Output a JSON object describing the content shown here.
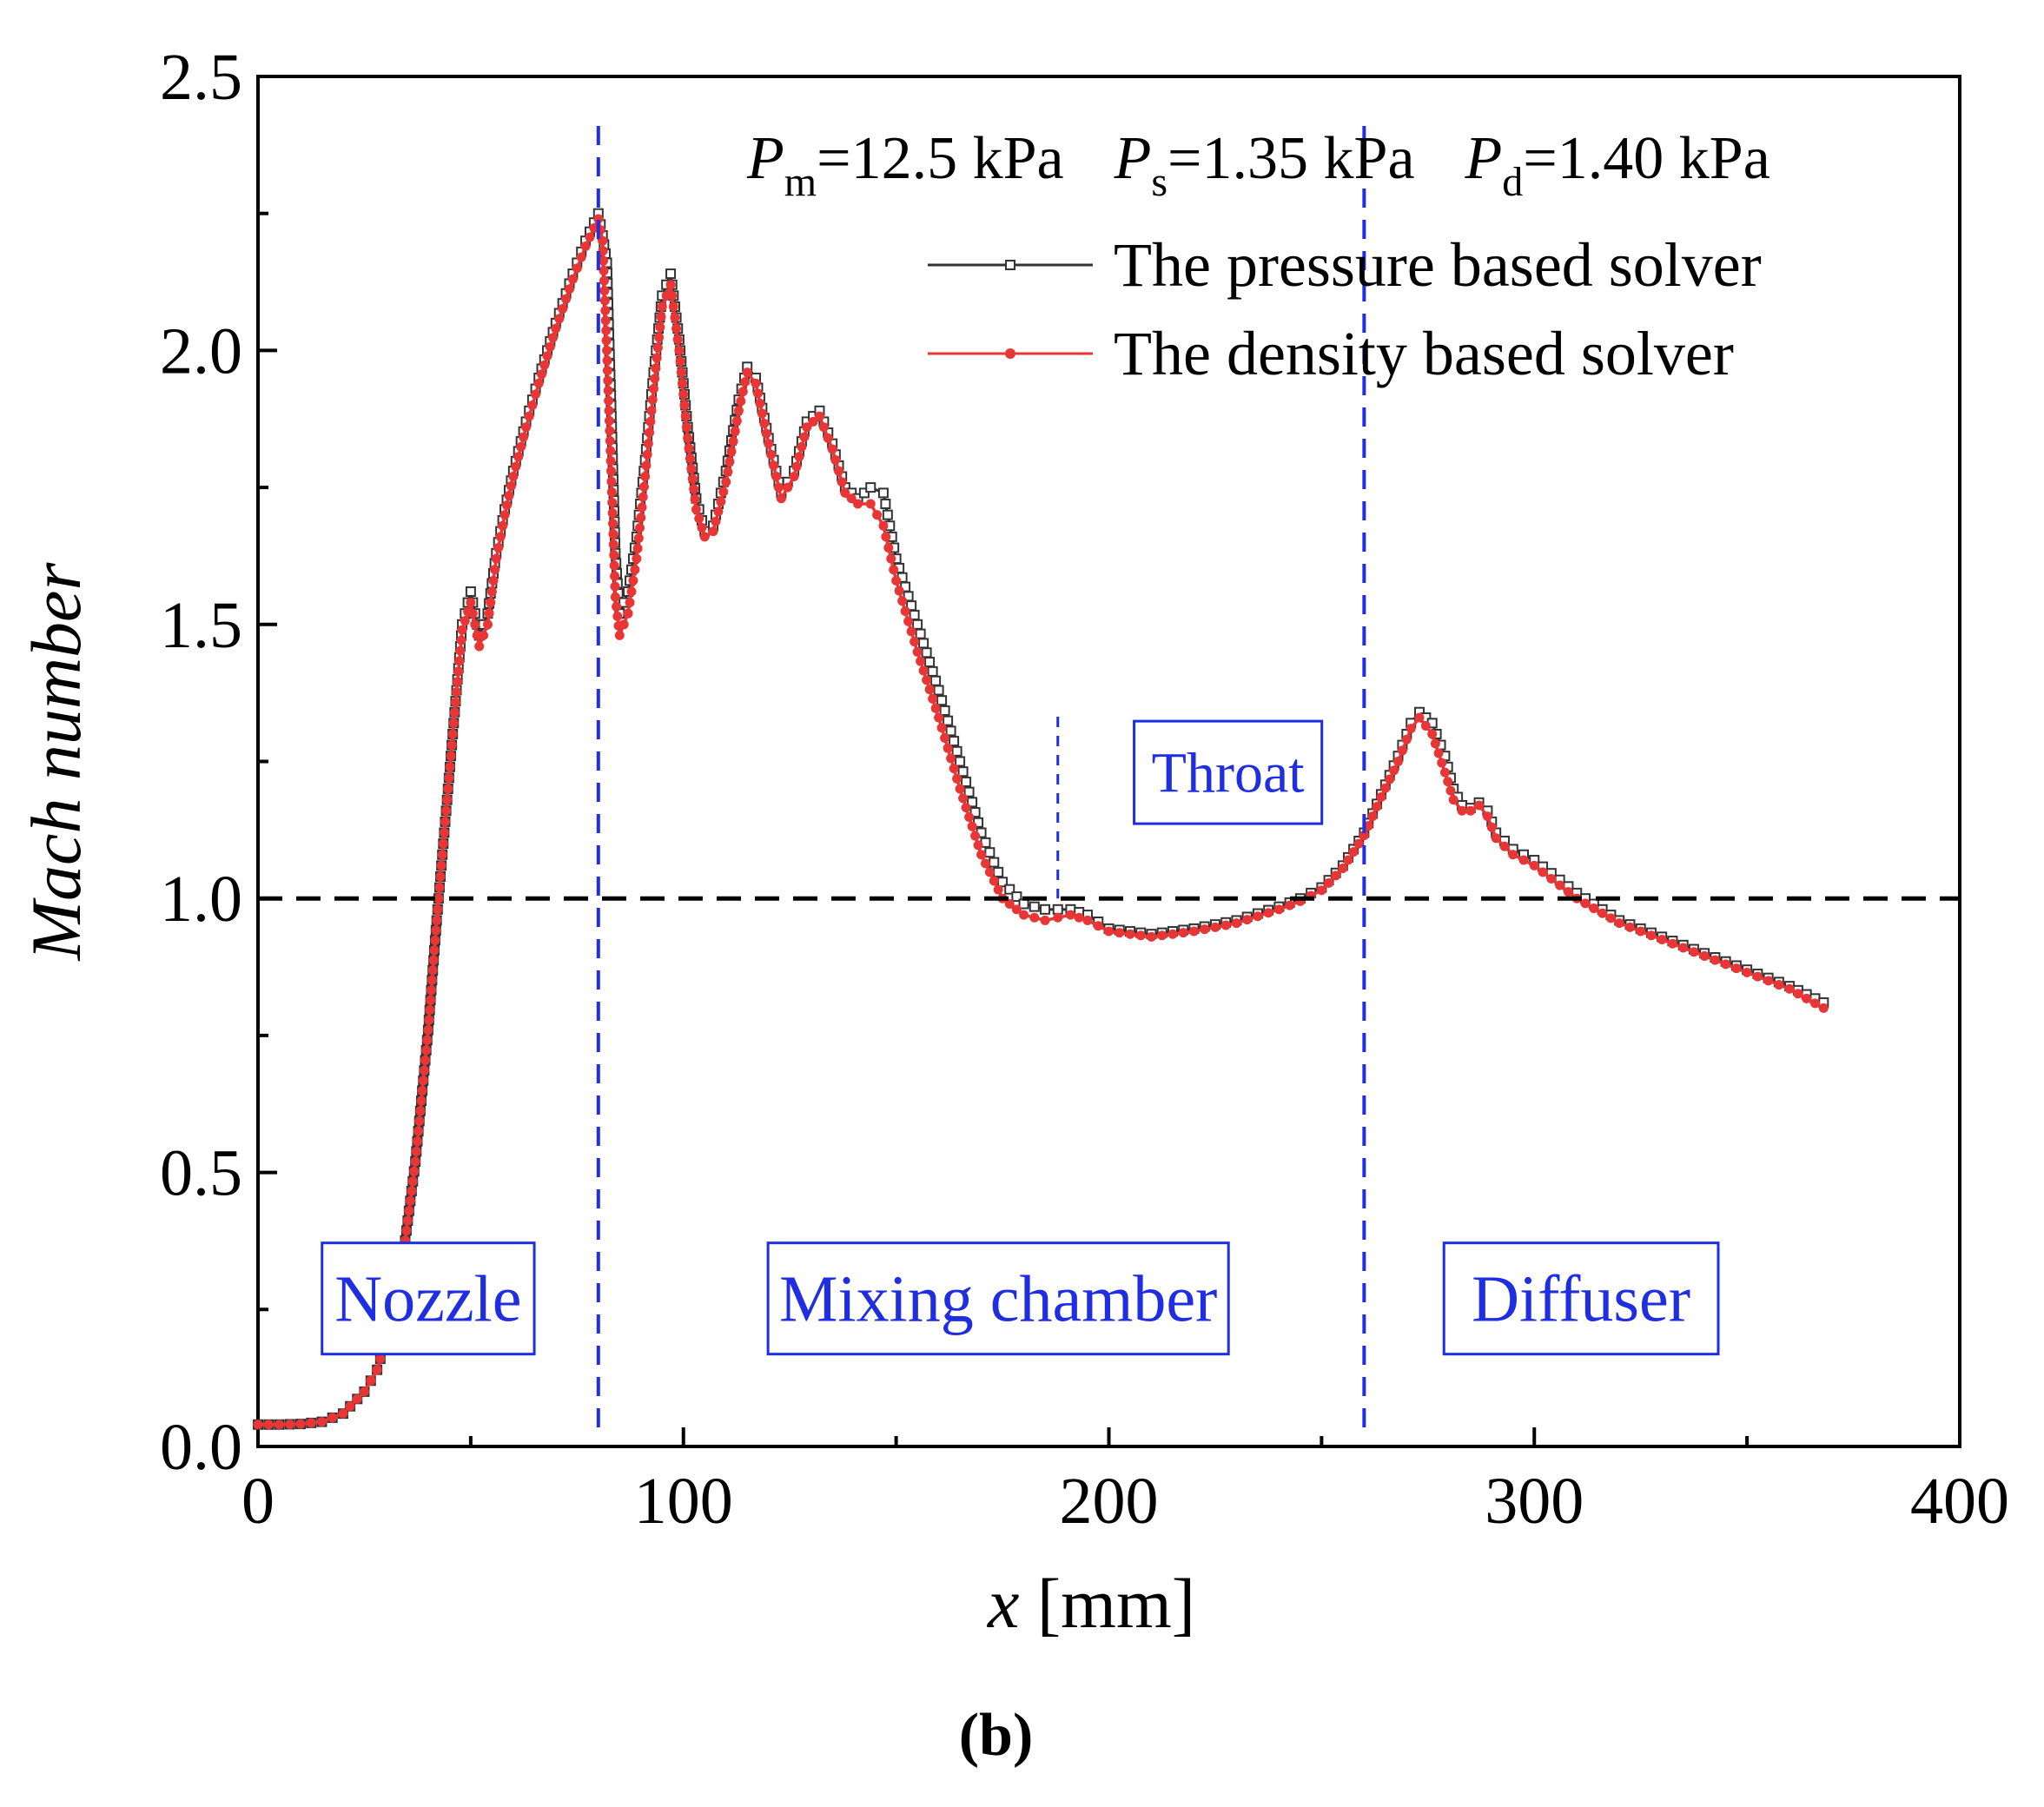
{
  "chart_data": {
    "type": "line",
    "xlabel_var": "x",
    "xlabel_unit": " [mm]",
    "ylabel": "Mach number",
    "xlim": [
      0,
      400
    ],
    "ylim": [
      0,
      2.5
    ],
    "xticks": [
      "0",
      "100",
      "200",
      "300",
      "400"
    ],
    "yticks": [
      "0.0",
      "0.5",
      "1.0",
      "1.5",
      "2.0",
      "2.5"
    ],
    "conditions": [
      {
        "sym": "P",
        "sub": "m",
        "val": "=12.5 kPa"
      },
      {
        "sym": "P",
        "sub": "s",
        "val": "=1.35 kPa"
      },
      {
        "sym": "P",
        "sub": "d",
        "val": "=1.40 kPa"
      }
    ],
    "reference_line": {
      "y": 1.0
    },
    "region_boundaries": [
      {
        "x": 80,
        "kind": "major"
      },
      {
        "x": 188,
        "kind": "minor"
      },
      {
        "x": 260,
        "kind": "major"
      }
    ],
    "regions": [
      {
        "label": "Nozzle",
        "x_center": 40,
        "y": 0.27
      },
      {
        "label": "Mixing chamber",
        "x_center": 174,
        "y": 0.27
      },
      {
        "label": "Throat",
        "x_center": 228,
        "y": 1.23
      },
      {
        "label": "Diffuser",
        "x_center": 311,
        "y": 0.27
      }
    ],
    "panel_label": "(b)",
    "series": [
      {
        "name": "The pressure based solver",
        "color": "#333333",
        "marker": "square",
        "x": [
          0,
          5,
          10,
          15,
          20,
          25,
          28,
          31,
          34,
          37,
          40,
          42,
          44,
          46,
          48,
          50,
          52,
          54,
          56,
          58,
          60,
          63,
          66,
          70,
          74,
          77,
          80,
          81,
          82,
          83,
          84,
          85,
          87,
          89,
          91,
          93,
          95,
          97,
          99,
          101,
          103,
          105,
          107,
          110,
          113,
          115,
          117,
          120,
          123,
          126,
          129,
          132,
          135,
          138,
          141,
          144,
          147,
          150,
          155,
          160,
          165,
          170,
          175,
          180,
          185,
          188,
          191,
          195,
          200,
          205,
          210,
          215,
          220,
          230,
          240,
          245,
          250,
          255,
          260,
          264,
          268,
          271,
          273,
          276,
          279,
          281,
          283,
          285,
          287,
          289,
          291,
          295,
          300,
          310,
          320,
          330,
          340,
          350,
          360,
          368
        ],
        "values": [
          0.04,
          0.04,
          0.041,
          0.045,
          0.06,
          0.1,
          0.14,
          0.22,
          0.34,
          0.52,
          0.76,
          0.96,
          1.14,
          1.32,
          1.5,
          1.56,
          1.48,
          1.52,
          1.63,
          1.71,
          1.78,
          1.87,
          1.95,
          2.05,
          2.14,
          2.2,
          2.25,
          2.21,
          2.16,
          1.9,
          1.63,
          1.52,
          1.56,
          1.66,
          1.8,
          1.96,
          2.1,
          2.14,
          2.02,
          1.86,
          1.73,
          1.67,
          1.68,
          1.78,
          1.91,
          1.97,
          1.95,
          1.84,
          1.74,
          1.78,
          1.87,
          1.89,
          1.83,
          1.75,
          1.73,
          1.75,
          1.74,
          1.62,
          1.5,
          1.38,
          1.25,
          1.12,
          1.03,
          0.99,
          0.98,
          0.98,
          0.98,
          0.97,
          0.945,
          0.94,
          0.935,
          0.94,
          0.945,
          0.96,
          0.985,
          1.0,
          1.02,
          1.06,
          1.12,
          1.19,
          1.26,
          1.32,
          1.34,
          1.32,
          1.26,
          1.2,
          1.17,
          1.165,
          1.175,
          1.16,
          1.12,
          1.09,
          1.07,
          1.01,
          0.96,
          0.93,
          0.9,
          0.87,
          0.84,
          0.81
        ]
      },
      {
        "name": "The density based solver",
        "color": "#e83535",
        "marker": "dot",
        "x": [
          0,
          5,
          10,
          15,
          20,
          25,
          28,
          31,
          34,
          37,
          40,
          42,
          44,
          46,
          48,
          50,
          52,
          54,
          56,
          58,
          60,
          63,
          66,
          70,
          74,
          77,
          80,
          81,
          82,
          83,
          84,
          85,
          87,
          89,
          91,
          93,
          95,
          97,
          99,
          101,
          103,
          105,
          107,
          110,
          113,
          115,
          117,
          120,
          123,
          126,
          129,
          132,
          135,
          138,
          141,
          144,
          147,
          150,
          155,
          160,
          165,
          170,
          175,
          180,
          185,
          188,
          191,
          195,
          200,
          205,
          210,
          215,
          220,
          230,
          240,
          245,
          250,
          255,
          260,
          264,
          268,
          271,
          273,
          276,
          279,
          281,
          283,
          285,
          287,
          289,
          291,
          295,
          300,
          310,
          320,
          330,
          340,
          350,
          360,
          368
        ],
        "values": [
          0.04,
          0.04,
          0.041,
          0.045,
          0.06,
          0.1,
          0.14,
          0.22,
          0.34,
          0.52,
          0.76,
          0.96,
          1.14,
          1.32,
          1.49,
          1.54,
          1.46,
          1.5,
          1.62,
          1.7,
          1.77,
          1.86,
          1.94,
          2.04,
          2.13,
          2.19,
          2.24,
          2.2,
          2.0,
          1.78,
          1.55,
          1.48,
          1.52,
          1.62,
          1.77,
          1.93,
          2.08,
          2.12,
          2.0,
          1.84,
          1.71,
          1.66,
          1.67,
          1.76,
          1.89,
          1.96,
          1.94,
          1.83,
          1.73,
          1.77,
          1.86,
          1.88,
          1.82,
          1.74,
          1.72,
          1.72,
          1.68,
          1.58,
          1.45,
          1.33,
          1.2,
          1.08,
          1.0,
          0.97,
          0.96,
          0.965,
          0.97,
          0.96,
          0.94,
          0.935,
          0.93,
          0.935,
          0.94,
          0.955,
          0.98,
          0.995,
          1.015,
          1.055,
          1.115,
          1.185,
          1.25,
          1.31,
          1.33,
          1.3,
          1.23,
          1.18,
          1.16,
          1.16,
          1.17,
          1.15,
          1.11,
          1.08,
          1.06,
          1.0,
          0.955,
          0.925,
          0.895,
          0.865,
          0.835,
          0.8
        ]
      }
    ]
  }
}
